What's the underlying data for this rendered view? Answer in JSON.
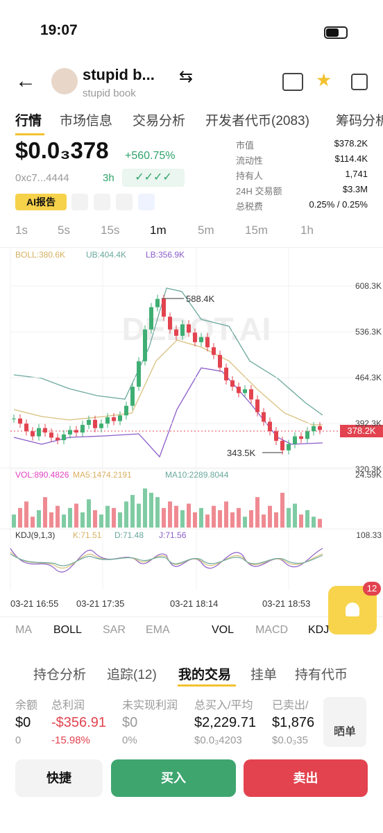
{
  "status": {
    "time": "19:07"
  },
  "header": {
    "name": "stupid b...",
    "subname": "stupid book"
  },
  "tabs": [
    "行情",
    "市场信息",
    "交易分析",
    "开发者代币(2083)",
    "筹码分析"
  ],
  "price": {
    "value": "$0.0₃378",
    "change": "+560.75%",
    "address": "0xc7...4444",
    "age": "3h",
    "ai": "AI报告"
  },
  "stats": [
    [
      "市值",
      "$378.2K"
    ],
    [
      "流动性",
      "$114.4K"
    ],
    [
      "持有人",
      "1,741"
    ],
    [
      "24H 交易额",
      "$3.3M"
    ],
    [
      "总税费",
      "0.25% / 0.25%"
    ]
  ],
  "intervals": [
    "1s",
    "5s",
    "15s",
    "1m",
    "5m",
    "15m",
    "1h"
  ],
  "chart": {
    "boll": [
      "BOLL:380.6K",
      "UB:404.4K",
      "LB:356.9K"
    ],
    "watermark": "DEBOT.AI",
    "high": "588.4K",
    "low": "343.5K",
    "current": "378.2K",
    "price_ticks": [
      {
        "value": 608.3,
        "label": "608.3K"
      },
      {
        "value": 536.3,
        "label": "536.3K"
      },
      {
        "value": 464.3,
        "label": "464.3K"
      },
      {
        "value": 392.3,
        "label": "392.3K"
      },
      {
        "value": 320.3,
        "label": "320.3K"
      }
    ],
    "candles": [
      400,
      392,
      380,
      372,
      385,
      378,
      370,
      366,
      375,
      382,
      378,
      390,
      398,
      385,
      392,
      402,
      396,
      405,
      420,
      450,
      490,
      540,
      575,
      588,
      560,
      540,
      530,
      548,
      535,
      520,
      528,
      512,
      500,
      480,
      460,
      450,
      440,
      446,
      430,
      410,
      395,
      380,
      365,
      350,
      360,
      372,
      368,
      380,
      388,
      382
    ],
    "vol_labels": [
      "VOL:890.4826",
      "MA5:1474.2191",
      "MA10:2289.8044"
    ],
    "vol_tick": {
      "value": 24.59,
      "label": "24.59K"
    },
    "volumes": [
      6,
      9,
      12,
      5,
      8,
      14,
      7,
      10,
      6,
      9,
      11,
      7,
      13,
      8,
      6,
      10,
      9,
      7,
      12,
      15,
      11,
      18,
      16,
      14,
      9,
      12,
      10,
      8,
      11,
      7,
      9,
      6,
      10,
      8,
      12,
      7,
      9,
      5,
      8,
      14,
      6,
      10,
      7,
      16,
      9,
      11,
      6,
      8,
      5,
      4
    ],
    "kdj_labels": [
      "KDJ(9,1,3)",
      "K:71.51",
      "D:71.48",
      "J:71.56"
    ],
    "kdj_tick": "108.33",
    "xlabels": [
      "03-21 16:55",
      "03-21 17:35",
      "03-21 18:14",
      "03-21 18:53"
    ]
  },
  "indicators": [
    "MA",
    "BOLL",
    "SAR",
    "EMA",
    "VOL",
    "MACD",
    "KDJ"
  ],
  "badge": "12",
  "subtabs": [
    "持仓分析",
    "追踪(12)",
    "我的交易",
    "挂单",
    "持有代币"
  ],
  "table": {
    "headers": [
      "余额",
      "总利润",
      "未实现利润",
      "总买入/平均",
      "已卖出/"
    ],
    "rows": [
      [
        "$0",
        "-$356.91",
        "$0",
        "$2,229.71",
        "$1,876"
      ],
      [
        "0",
        "-15.98%",
        "0%",
        "$0.0₃4203",
        "$0.0₃35"
      ]
    ],
    "share": "晒单"
  },
  "buttons": [
    "快捷",
    "买入",
    "卖出"
  ]
}
